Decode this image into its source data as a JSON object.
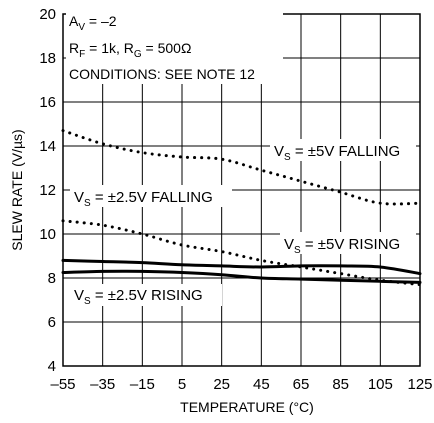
{
  "chart_data": {
    "type": "line",
    "xlabel": "TEMPERATURE (°C)",
    "ylabel": "SLEW RATE (V/µs)",
    "xlim": [
      -55,
      125
    ],
    "ylim": [
      4,
      20
    ],
    "xticks": [
      -55,
      -35,
      -15,
      5,
      25,
      45,
      65,
      85,
      105,
      125
    ],
    "yticks": [
      4,
      6,
      8,
      10,
      12,
      14,
      16,
      18,
      20
    ],
    "xtick_labels": [
      "–55",
      "–35",
      "–15",
      "5",
      "25",
      "45",
      "65",
      "85",
      "105",
      "125"
    ],
    "ytick_labels": [
      "4",
      "6",
      "8",
      "10",
      "12",
      "14",
      "16",
      "18",
      "20"
    ],
    "grid": true,
    "conditions": {
      "av_prefix": "A",
      "av_sub": "V",
      "av_rest": " = –2",
      "rf_prefix": "R",
      "rf_sub": "F",
      "rf_mid": " = 1k, R",
      "rg_sub": "G",
      "rg_rest": " = 500Ω",
      "note": "CONDITIONS: SEE NOTE 12"
    },
    "series": [
      {
        "label_prefix": "V",
        "label_sub": "S",
        "label_rest": " = ±5V FALLING",
        "style": "dotted",
        "x": [
          -55,
          -35,
          -15,
          5,
          25,
          45,
          65,
          85,
          105,
          125
        ],
        "y": [
          14.7,
          14.1,
          13.7,
          13.5,
          13.4,
          12.9,
          12.4,
          11.9,
          11.4,
          11.4
        ]
      },
      {
        "label_prefix": "V",
        "label_sub": "S",
        "label_rest": " = ±2.5V FALLING",
        "style": "dotted",
        "x": [
          -55,
          -35,
          -15,
          5,
          25,
          45,
          65,
          85,
          105,
          125
        ],
        "y": [
          10.6,
          10.4,
          10.0,
          9.5,
          9.2,
          8.8,
          8.5,
          8.2,
          7.9,
          7.7
        ]
      },
      {
        "label_prefix": "V",
        "label_sub": "S",
        "label_rest": " = ±5V RISING",
        "style": "solid",
        "x": [
          -55,
          -35,
          -15,
          5,
          25,
          45,
          65,
          85,
          105,
          125
        ],
        "y": [
          8.8,
          8.75,
          8.7,
          8.6,
          8.55,
          8.5,
          8.55,
          8.55,
          8.5,
          8.2
        ]
      },
      {
        "label_prefix": "V",
        "label_sub": "S",
        "label_rest": " = ±2.5V RISING",
        "style": "solid",
        "x": [
          -55,
          -35,
          -15,
          5,
          25,
          45,
          65,
          85,
          105,
          125
        ],
        "y": [
          8.25,
          8.3,
          8.3,
          8.25,
          8.15,
          8.0,
          7.95,
          7.9,
          7.85,
          7.8
        ]
      }
    ]
  }
}
